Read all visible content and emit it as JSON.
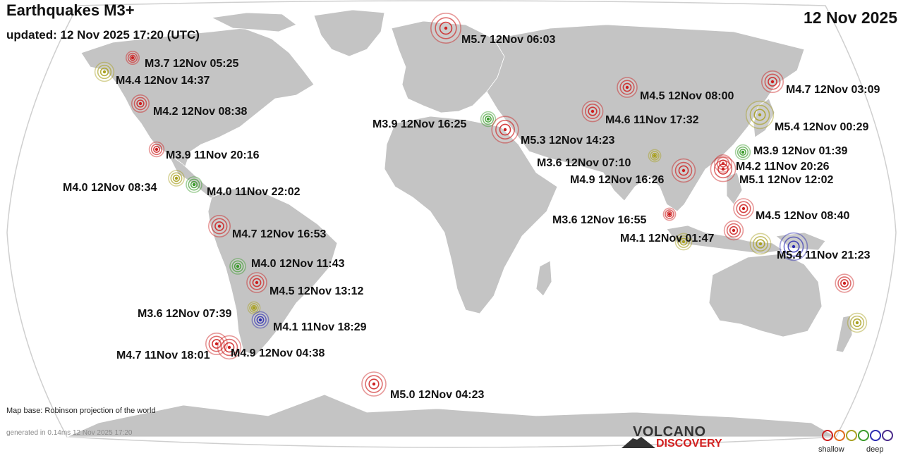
{
  "header": {
    "title": "Earthquakes M3+",
    "updated": "updated: 12 Nov 2025 17:20 (UTC)",
    "date": "12 Nov 2025"
  },
  "colors": {
    "ocean": "#ffffff",
    "land": "#c4c4c4",
    "graticule_border": "#cfcfcf",
    "depth_shallow": "#cc1f1f",
    "depth_1": "#e06a1b",
    "depth_2": "#a8a020",
    "depth_3": "#3a9a2a",
    "depth_4": "#2a2ab0",
    "depth_deep": "#4a2a8a"
  },
  "quakes": [
    {
      "label": "M5.7 12Nov 06:03",
      "mag": 5.7,
      "depth_class": "shallow"
    },
    {
      "label": "M3.7 12Nov 05:25",
      "mag": 3.7,
      "depth_class": "shallow"
    },
    {
      "label": "M4.4 12Nov 14:37",
      "mag": 4.4,
      "depth_class": "mid"
    },
    {
      "label": "M4.2 12Nov 08:38",
      "mag": 4.2,
      "depth_class": "shallow"
    },
    {
      "label": "M3.9 11Nov 20:16",
      "mag": 3.9,
      "depth_class": "shallow"
    },
    {
      "label": "M4.0 12Nov 08:34",
      "mag": 4.0,
      "depth_class": "mid"
    },
    {
      "label": "M4.0 11Nov 22:02",
      "mag": 4.0,
      "depth_class": "intermediate"
    },
    {
      "label": "M4.7 12Nov 16:53",
      "mag": 4.7,
      "depth_class": "shallow"
    },
    {
      "label": "M4.0 12Nov 11:43",
      "mag": 4.0,
      "depth_class": "intermediate"
    },
    {
      "label": "M4.5 12Nov 13:12",
      "mag": 4.5,
      "depth_class": "shallow"
    },
    {
      "label": "M3.6 12Nov 07:39",
      "mag": 3.6,
      "depth_class": "mid"
    },
    {
      "label": "M4.1 11Nov 18:29",
      "mag": 4.1,
      "depth_class": "deep"
    },
    {
      "label": "M4.7 11Nov 18:01",
      "mag": 4.7,
      "depth_class": "shallow"
    },
    {
      "label": "M4.9 12Nov 04:38",
      "mag": 4.9,
      "depth_class": "shallow"
    },
    {
      "label": "M5.0 12Nov 04:23",
      "mag": 5.0,
      "depth_class": "shallow"
    },
    {
      "label": "M3.9 12Nov 16:25",
      "mag": 3.9,
      "depth_class": "intermediate"
    },
    {
      "label": "M5.3 12Nov 14:23",
      "mag": 5.3,
      "depth_class": "shallow"
    },
    {
      "label": "M4.6 11Nov 17:32",
      "mag": 4.6,
      "depth_class": "shallow"
    },
    {
      "label": "M4.5 12Nov 08:00",
      "mag": 4.5,
      "depth_class": "shallow"
    },
    {
      "label": "M3.6 12Nov 07:10",
      "mag": 3.6,
      "depth_class": "mid"
    },
    {
      "label": "M4.9 12Nov 16:26",
      "mag": 4.9,
      "depth_class": "shallow"
    },
    {
      "label": "M4.7 12Nov 03:09",
      "mag": 4.7,
      "depth_class": "shallow"
    },
    {
      "label": "M5.4 12Nov 00:29",
      "mag": 5.4,
      "depth_class": "mid"
    },
    {
      "label": "M3.9 12Nov 01:39",
      "mag": 3.9,
      "depth_class": "intermediate"
    },
    {
      "label": "M4.2 11Nov 20:26",
      "mag": 4.2,
      "depth_class": "shallow"
    },
    {
      "label": "M5.1 12Nov 12:02",
      "mag": 5.1,
      "depth_class": "shallow"
    },
    {
      "label": "M4.5 12Nov 08:40",
      "mag": 4.5,
      "depth_class": "shallow"
    },
    {
      "label": "M3.6 12Nov 16:55",
      "mag": 3.6,
      "depth_class": "shallow"
    },
    {
      "label": "M4.1 12Nov 01:47",
      "mag": 4.1,
      "depth_class": "mid"
    },
    {
      "label": "M5.4 11Nov 21:23",
      "mag": 5.4,
      "depth_class": "deep"
    },
    {
      "label": "",
      "mag": 4.3,
      "depth_class": "shallow"
    },
    {
      "label": "",
      "mag": 4.4,
      "depth_class": "mid"
    },
    {
      "label": "",
      "mag": 4.4,
      "depth_class": "shallow"
    },
    {
      "label": "",
      "mag": 4.6,
      "depth_class": "mid"
    }
  ],
  "footer": {
    "map_base": "Map base: Robinson projection of the world",
    "generated": "generated in 0.14ms 12 Nov 2025 17:20"
  },
  "logo": {
    "top": "VOLCANO",
    "bottom": "DISCOVERY"
  },
  "legend": {
    "shallow": "shallow",
    "deep": "deep"
  }
}
